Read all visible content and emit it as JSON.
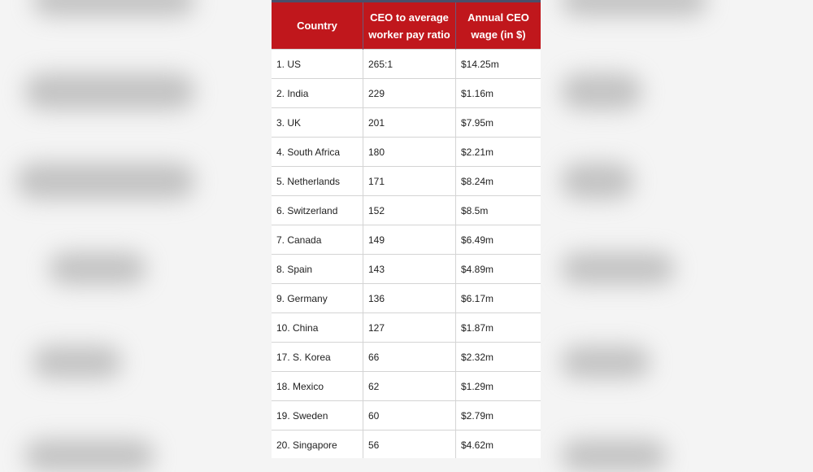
{
  "table": {
    "headers": [
      "Country",
      "CEO to average worker pay ratio",
      "Annual CEO wage (in $)"
    ],
    "rows": [
      [
        "1. US",
        "265:1",
        "$14.25m"
      ],
      [
        "2. India",
        "229",
        "$1.16m"
      ],
      [
        "3. UK",
        "201",
        "$7.95m"
      ],
      [
        "4. South Africa",
        "180",
        "$2.21m"
      ],
      [
        "5. Netherlands",
        "171",
        "$8.24m"
      ],
      [
        "6. Switzerland",
        "152",
        "$8.5m"
      ],
      [
        "7. Canada",
        "149",
        "$6.49m"
      ],
      [
        "8. Spain",
        "143",
        "$4.89m"
      ],
      [
        "9. Germany",
        "136",
        "$6.17m"
      ],
      [
        "10. China",
        "127",
        "$1.87m"
      ],
      [
        "17. S. Korea",
        "66",
        "$2.32m"
      ],
      [
        "18. Mexico",
        "62",
        "$1.29m"
      ],
      [
        "19. Sweden",
        "60",
        "$2.79m"
      ],
      [
        "20. Singapore",
        "56",
        "$4.62m"
      ]
    ]
  },
  "colors": {
    "header_bg": "#c0171c",
    "header_text": "#ffffff"
  }
}
